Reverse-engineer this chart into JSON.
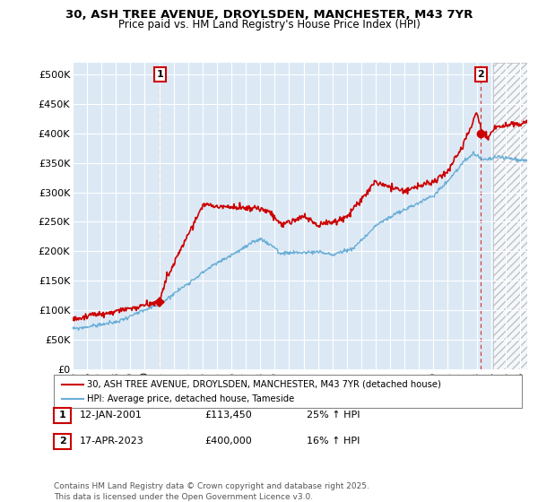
{
  "title1": "30, ASH TREE AVENUE, DROYLSDEN, MANCHESTER, M43 7YR",
  "title2": "Price paid vs. HM Land Registry's House Price Index (HPI)",
  "xlim_start": 1995.0,
  "xlim_end": 2026.5,
  "ylim": [
    0,
    520000
  ],
  "yticks": [
    0,
    50000,
    100000,
    150000,
    200000,
    250000,
    300000,
    350000,
    400000,
    450000,
    500000
  ],
  "ytick_labels": [
    "£0",
    "£50K",
    "£100K",
    "£150K",
    "£200K",
    "£250K",
    "£300K",
    "£350K",
    "£400K",
    "£450K",
    "£500K"
  ],
  "point1_x": 2001.04,
  "point1_y": 113450,
  "point2_x": 2023.29,
  "point2_y": 400000,
  "legend_line1": "30, ASH TREE AVENUE, DROYLSDEN, MANCHESTER, M43 7YR (detached house)",
  "legend_line2": "HPI: Average price, detached house, Tameside",
  "table_row1": [
    "1",
    "12-JAN-2001",
    "£113,450",
    "25% ↑ HPI"
  ],
  "table_row2": [
    "2",
    "17-APR-2023",
    "£400,000",
    "16% ↑ HPI"
  ],
  "footer": "Contains HM Land Registry data © Crown copyright and database right 2025.\nThis data is licensed under the Open Government Licence v3.0.",
  "red_color": "#cc0000",
  "blue_color": "#6aaed6",
  "bg_color": "#dce9f5",
  "hatch_start": 2024.17
}
